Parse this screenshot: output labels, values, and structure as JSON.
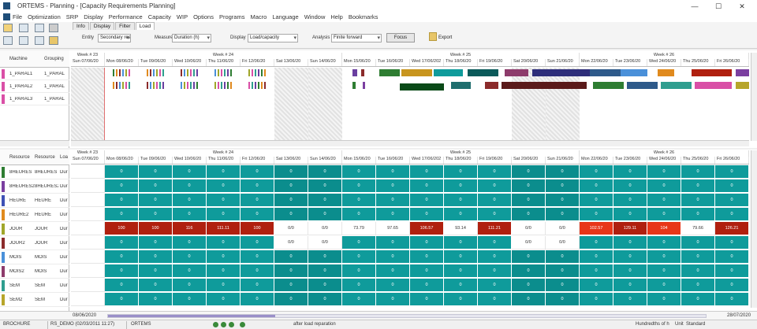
{
  "window": {
    "title": "ORTEMS - Planning - [Capacity Requirements Planning]",
    "minimize": "—",
    "maximize": "☐",
    "close": "✕"
  },
  "menu": [
    "File",
    "Optimization",
    "SRP",
    "Display",
    "Performance",
    "Capacity",
    "WIP",
    "Options",
    "Programs",
    "Macro",
    "Language",
    "Window",
    "Help",
    "Bookmarks"
  ],
  "tabs": [
    "Info",
    "Display",
    "Filter",
    "Load"
  ],
  "active_tab": "Load",
  "controls": {
    "entity_label": "Entity",
    "entity_value": "Secondary res.",
    "measure_label": "Measure",
    "measure_value": "Duration (h)",
    "display_label": "Display",
    "display_value": "Load/capacity",
    "analysis_label": "Analysis",
    "analysis_value": "Finite forward",
    "focus_button": "Focus",
    "export_label": "Export"
  },
  "top_panel": {
    "columns": [
      "Machine",
      "Grouping"
    ],
    "rows": [
      {
        "machine": "1_PARAL1",
        "grouping": "1_PARAL",
        "color": "#d94fa6"
      },
      {
        "machine": "1_PARAL2",
        "grouping": "1_PARAL",
        "color": "#d94fa6"
      },
      {
        "machine": "1_PARAL3",
        "grouping": "1_PARAL",
        "color": "#d94fa6"
      }
    ]
  },
  "weeks": [
    {
      "label": "Week # 23"
    },
    {
      "label": "Week # 24"
    },
    {
      "label": "Week # 25"
    },
    {
      "label": "Week # 26"
    }
  ],
  "days": [
    "Sun 07/06/20",
    "Mon 08/06/20",
    "Tue 09/06/20",
    "Wed 10/06/20",
    "Thu 11/06/20",
    "Fri 12/06/20",
    "Sat 13/06/20",
    "Sun 14/06/20",
    "Mon 15/06/20",
    "Tue 16/06/20",
    "Wed 17/06/202",
    "Thu 18/06/20",
    "Fri 19/06/20",
    "Sat 20/06/20",
    "Sun 21/06/20",
    "Mon 22/06/20",
    "Tue 23/06/20",
    "Wed 24/06/20",
    "Thu 25/06/20",
    "Fri 26/06/20"
  ],
  "bottom_panel": {
    "columns": [
      "Resource",
      "Resource",
      "Loa"
    ],
    "rows": [
      {
        "res": "8HEURES",
        "res2": "8HEURES",
        "load": "Dur",
        "color": "#2e7d32"
      },
      {
        "res": "8HEURES2",
        "res2": "8HEURES2",
        "load": "Dur",
        "color": "#7b3fa0"
      },
      {
        "res": "HEURE",
        "res2": "HEURE",
        "load": "Dur",
        "color": "#3f51b5"
      },
      {
        "res": "HEURE2",
        "res2": "HEURE",
        "load": "Dur",
        "color": "#e08a1e"
      },
      {
        "res": "JOUR",
        "res2": "JOUR",
        "load": "Dur",
        "color": "#a0a62a"
      },
      {
        "res": "JOUR2",
        "res2": "JOUR",
        "load": "Dur",
        "color": "#8b2b2b"
      },
      {
        "res": "MOIS",
        "res2": "MOIS",
        "load": "Dur",
        "color": "#4a90d9"
      },
      {
        "res": "MOIS2",
        "res2": "MOIS",
        "load": "Dur",
        "color": "#8d3b6b"
      },
      {
        "res": "SEM",
        "res2": "SEM",
        "load": "Dur",
        "color": "#2f9e8f"
      },
      {
        "res": "SEM2",
        "res2": "SEM",
        "load": "Dur",
        "color": "#b7a52a"
      }
    ],
    "values": [
      [
        "",
        "0",
        "0",
        "0",
        "0",
        "0",
        "0",
        "0",
        "0",
        "0",
        "0",
        "0",
        "0",
        "0",
        "0",
        "0",
        "0",
        "0",
        "0",
        "0"
      ],
      [
        "",
        "0",
        "0",
        "0",
        "0",
        "0",
        "0",
        "0",
        "0",
        "0",
        "0",
        "0",
        "0",
        "0",
        "0",
        "0",
        "0",
        "0",
        "0",
        "0"
      ],
      [
        "",
        "0",
        "0",
        "0",
        "0",
        "0",
        "0",
        "0",
        "0",
        "0",
        "0",
        "0",
        "0",
        "0",
        "0",
        "0",
        "0",
        "0",
        "0",
        "0"
      ],
      [
        "",
        "0",
        "0",
        "0",
        "0",
        "0",
        "0",
        "0",
        "0",
        "0",
        "0",
        "0",
        "0",
        "0",
        "0",
        "0",
        "0",
        "0",
        "0",
        "0"
      ],
      [
        "",
        "100",
        "100",
        "116",
        "111.11",
        "100",
        "0/0",
        "0/0",
        "73.79",
        "97.65",
        "106.57",
        "93.14",
        "111.21",
        "0/0",
        "0/0",
        "102.57",
        "129.11",
        "104",
        "79.66",
        "126.21"
      ],
      [
        "",
        "0",
        "0",
        "0",
        "0",
        "0",
        "0/0",
        "0/0",
        "0",
        "0",
        "0",
        "0",
        "0",
        "0/0",
        "0/0",
        "0",
        "0",
        "0",
        "0",
        "0"
      ],
      [
        "",
        "0",
        "0",
        "0",
        "0",
        "0",
        "0",
        "0",
        "0",
        "0",
        "0",
        "0",
        "0",
        "0",
        "0",
        "0",
        "0",
        "0",
        "0",
        "0"
      ],
      [
        "",
        "0",
        "0",
        "0",
        "0",
        "0",
        "0",
        "0",
        "0",
        "0",
        "0",
        "0",
        "0",
        "0",
        "0",
        "0",
        "0",
        "0",
        "0",
        "0"
      ],
      [
        "",
        "0",
        "0",
        "0",
        "0",
        "0",
        "0",
        "0",
        "0",
        "0",
        "0",
        "0",
        "0",
        "0",
        "0",
        "0",
        "0",
        "0",
        "0",
        "0"
      ],
      [
        "",
        "0",
        "0",
        "0",
        "0",
        "0",
        "0",
        "0",
        "0",
        "0",
        "0",
        "0",
        "0",
        "0",
        "0",
        "0",
        "0",
        "0",
        "0",
        "0"
      ]
    ]
  },
  "timeline": {
    "start": "08/06/2020",
    "end": "28/07/2020",
    "position": 0.28
  },
  "status": {
    "user": "BROCHURE",
    "database": "RS_DEMO (02/03/2011 11:27)",
    "app": "ORTEMS",
    "message": "after load reparation",
    "units": "Hundredths of h",
    "unit_label": "Unit",
    "unit_value": "Standard"
  }
}
